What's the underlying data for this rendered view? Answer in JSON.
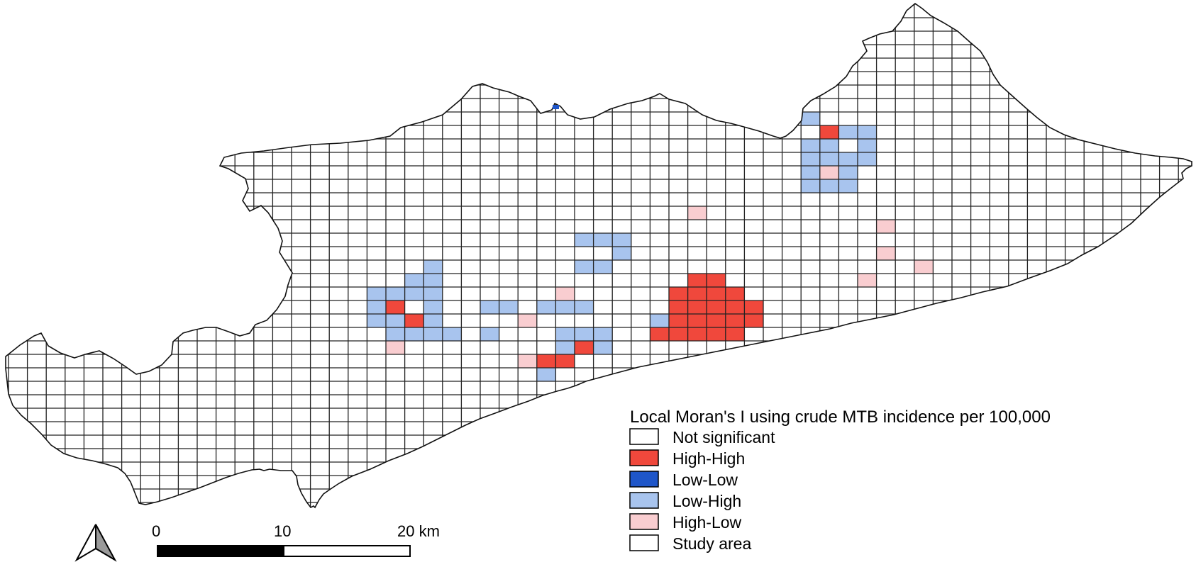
{
  "legend": {
    "title": "Local Moran's I using crude MTB incidence per 100,000",
    "items": [
      {
        "label": "Not significant",
        "color": "#ffffff"
      },
      {
        "label": "High-High",
        "color": "#f0483c"
      },
      {
        "label": "Low-Low",
        "color": "#1f56c9"
      },
      {
        "label": "Low-High",
        "color": "#a8c4ee"
      },
      {
        "label": "High-Low",
        "color": "#f9cdd0"
      },
      {
        "label": "Study area",
        "color": "#ffffff"
      }
    ]
  },
  "scale_bar": {
    "labels": [
      "0",
      "10",
      "20 km"
    ]
  },
  "north_arrow": {
    "icon": "north-arrow-icon"
  },
  "map": {
    "grid_line_color": "#222222",
    "outline_color": "#111111"
  }
}
